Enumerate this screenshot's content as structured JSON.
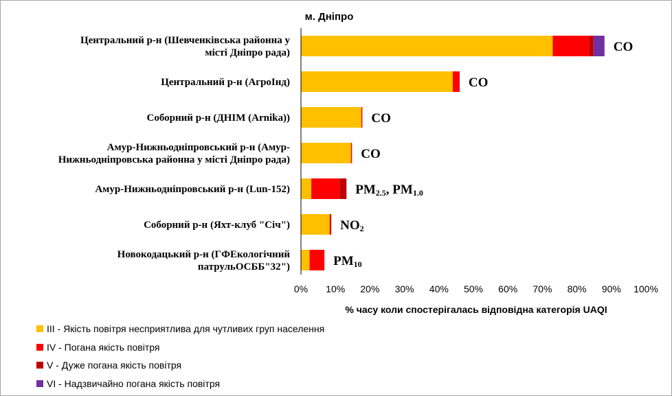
{
  "chart_data": {
    "type": "bar",
    "orientation": "horizontal",
    "stacked": true,
    "title": "м. Дніпро",
    "xlabel": "% часу коли спостерігалась відповідна категорія UAQI",
    "xlim": [
      0,
      100
    ],
    "x_ticks": [
      "0%",
      "10%",
      "20%",
      "30%",
      "40%",
      "50%",
      "60%",
      "70%",
      "80%",
      "90%",
      "100%"
    ],
    "grid": false,
    "legend_position": "bottom-left",
    "categories": [
      {
        "lines": [
          "Центральний р-н (Шевченківська районна у",
          "місті Дніпро рада)"
        ],
        "pollutant": [
          {
            "t": "CO"
          }
        ]
      },
      {
        "lines": [
          "Центральний р-н (АгроІнд)"
        ],
        "pollutant": [
          {
            "t": "CO"
          }
        ]
      },
      {
        "lines": [
          "Соборний р-н (ДНІМ (Arnika))"
        ],
        "pollutant": [
          {
            "t": "CO"
          }
        ]
      },
      {
        "lines": [
          "Амур-Нижньодніпровський р-н (Амур-",
          "Нижньодніпровська районна у місті Дніпро рада)"
        ],
        "pollutant": [
          {
            "t": "CO"
          }
        ]
      },
      {
        "lines": [
          "Амур-Нижньодніпровський р-н (Lun-152)"
        ],
        "pollutant": [
          {
            "t": "PM"
          },
          {
            "t": "2.5",
            "sub": true
          },
          {
            "t": ", PM"
          },
          {
            "t": "1.0",
            "sub": true
          }
        ]
      },
      {
        "lines": [
          "Соборний р-н (Яхт-клуб \"Січ\")"
        ],
        "pollutant": [
          {
            "t": "NO"
          },
          {
            "t": "2",
            "sub": true
          }
        ]
      },
      {
        "lines": [
          "Новокодацький р-н (ГФЕкологічний",
          "патрульОСББ\"32\")"
        ],
        "pollutant": [
          {
            "t": "PM"
          },
          {
            "t": "10",
            "sub": true
          }
        ]
      }
    ],
    "series": [
      {
        "name": "III - Якість повітря несприятлива для чутливих груп населення",
        "color": "#FFC000",
        "values": [
          73.0,
          44.0,
          17.5,
          14.5,
          3.0,
          8.3,
          2.5
        ]
      },
      {
        "name": "IV - Погана якість повітря",
        "color": "#FF0000",
        "values": [
          10.5,
          1.8,
          0.3,
          0.3,
          8.2,
          0.3,
          4.3
        ]
      },
      {
        "name": "V - Дуже погана якість повітря",
        "color": "#C00000",
        "values": [
          1.3,
          0.2,
          0,
          0,
          2.0,
          0.2,
          0
        ]
      },
      {
        "name": "VI - Надзвичайно погана якість повітря",
        "color": "#7030A0",
        "values": [
          3.2,
          0,
          0,
          0,
          0,
          0,
          0
        ]
      }
    ]
  }
}
